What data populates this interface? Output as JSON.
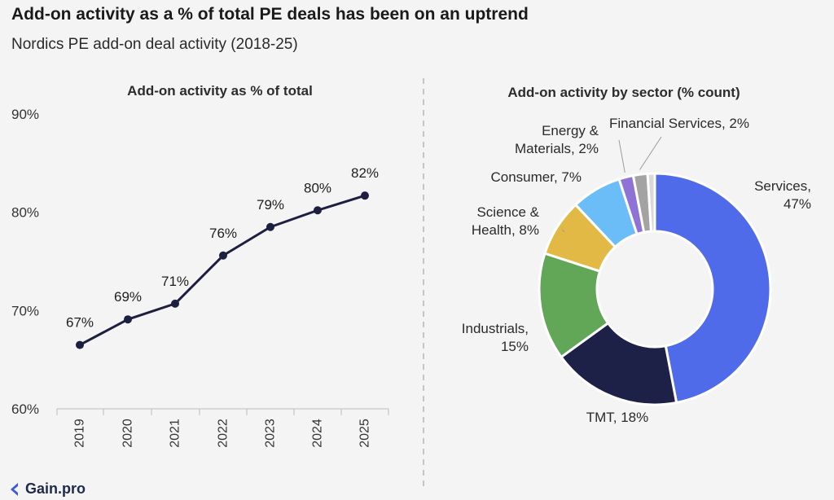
{
  "header": {
    "title": "Add-on activity as a % of total PE deals has been on an uptrend",
    "subtitle": "Nordics PE add-on deal activity (2018-25)"
  },
  "brand": {
    "name": "Gain.pro",
    "color": "#3a5bd9"
  },
  "chart_data": [
    {
      "type": "line",
      "title": "Add-on activity as % of total",
      "x": [
        "2019",
        "2020",
        "2021",
        "2022",
        "2023",
        "2024",
        "2025"
      ],
      "values": [
        66.5,
        69.1,
        70.7,
        75.6,
        78.5,
        80.2,
        81.7
      ],
      "data_labels": [
        "67%",
        "69%",
        "71%",
        "76%",
        "79%",
        "80%",
        "82%"
      ],
      "ylim": [
        60,
        90
      ],
      "yticks": [
        60,
        70,
        80,
        90
      ],
      "ytick_labels": [
        "60%",
        "70%",
        "80%",
        "90%"
      ],
      "grid": false,
      "line_color": "#1c1f3f"
    },
    {
      "type": "pie",
      "donut": true,
      "title": "Add-on activity by sector (% count)",
      "slices": [
        {
          "lines": [
            "Services,",
            "47%"
          ],
          "value": 47,
          "color": "#4f6bea"
        },
        {
          "lines": [
            "TMT, 18%"
          ],
          "value": 18,
          "color": "#1d2147"
        },
        {
          "lines": [
            "Industrials,",
            "15%"
          ],
          "value": 15,
          "color": "#62a758"
        },
        {
          "lines": [
            "Science &",
            "Health, 8%"
          ],
          "value": 8,
          "color": "#e3b946"
        },
        {
          "lines": [
            "Consumer, 7%"
          ],
          "value": 7,
          "color": "#6bbdf7"
        },
        {
          "lines": [
            "Energy &",
            "Materials, 2%"
          ],
          "value": 2,
          "color": "#8e72d6"
        },
        {
          "lines": [
            "Financial Services, 2%"
          ],
          "value": 2,
          "color": "#a3a3a3"
        },
        {
          "lines": [
            ""
          ],
          "value": 1,
          "color": "#d9d9d9"
        }
      ]
    }
  ]
}
